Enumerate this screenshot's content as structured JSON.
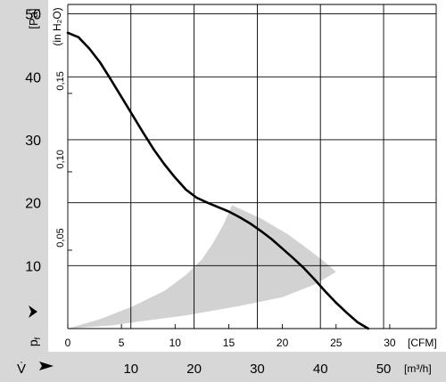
{
  "chart_data": {
    "type": "line",
    "y_unit": "[Pa]",
    "y_unit_alt": "(in H₂O)",
    "y_symbol": "p",
    "y_symbol_sub": "f",
    "x_unit_cfm": "[CFM]",
    "x_unit_m3h": "[m³/h]",
    "x_symbol": "V̇",
    "ylim": [
      0,
      51.5
    ],
    "xlim_cfm": [
      0,
      35
    ],
    "grid": true,
    "y_ticks_pa": [
      10,
      20,
      30,
      40,
      50
    ],
    "y_ticks_inh2o": [
      0.05,
      0.1,
      0.15
    ],
    "x_ticks_cfm": [
      0,
      5,
      10,
      15,
      20,
      25,
      30
    ],
    "x_ticks_m3h": [
      10,
      20,
      30,
      40,
      50
    ],
    "vertical_grid_cfm": [
      0,
      5.88,
      11.77,
      17.66,
      23.54,
      29.43
    ],
    "y_tick_labels_pa": [
      "10",
      "20",
      "30",
      "40",
      "50"
    ],
    "y_tick_labels_inh2o": [
      "0,05",
      "0,10",
      "0,15"
    ],
    "x_tick_labels_cfm": [
      "0",
      "5",
      "10",
      "15",
      "20",
      "25",
      "30"
    ],
    "x_tick_labels_m3h": [
      "10",
      "20",
      "30",
      "40",
      "50"
    ],
    "series": [
      {
        "x": [
          0,
          1,
          2,
          3,
          4,
          5,
          6,
          7,
          8,
          9,
          10,
          11,
          12,
          13,
          14,
          15,
          16,
          17,
          18,
          19,
          20,
          21,
          22,
          23,
          24,
          25,
          26,
          27,
          28
        ],
        "y": [
          47,
          46.3,
          44.5,
          42.3,
          39.6,
          36.8,
          34,
          31.2,
          28.5,
          26.1,
          24,
          22.1,
          20.8,
          20,
          19.3,
          18.6,
          17.7,
          16.7,
          15.5,
          14.2,
          12.7,
          11.2,
          9.6,
          7.8,
          5.9,
          4.1,
          2.5,
          1,
          0
        ]
      }
    ],
    "shaded_region": {
      "upper_x": [
        0,
        3,
        6,
        9,
        11,
        12.5,
        13.5,
        14.5,
        15.3
      ],
      "upper_y": [
        0,
        1.5,
        3.5,
        6,
        8.5,
        11,
        13.5,
        16.5,
        19.6
      ],
      "right_x": [
        15.3,
        18,
        20.5,
        22.5,
        24,
        25
      ],
      "right_y": [
        19.6,
        17.5,
        15,
        12.5,
        10.5,
        9
      ],
      "lower_x": [
        25,
        23,
        20,
        16,
        11,
        7,
        4,
        0
      ],
      "lower_y": [
        9,
        7,
        5,
        3.6,
        2.1,
        1.2,
        0.5,
        0
      ]
    }
  }
}
